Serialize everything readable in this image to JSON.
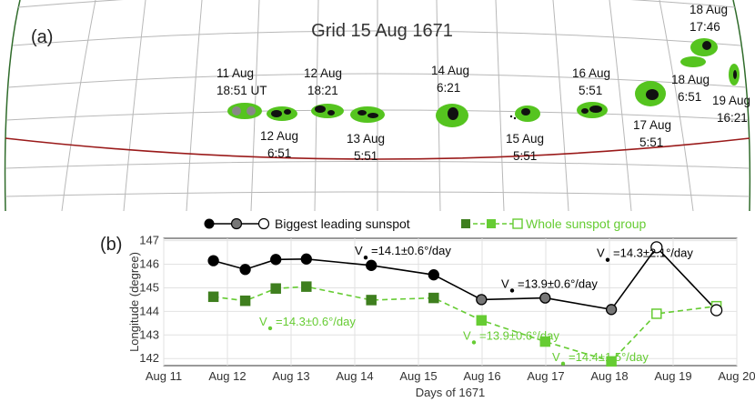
{
  "panel_a": {
    "label": "(a)",
    "title": "Grid 15 Aug 1671",
    "drawings": [
      {
        "date": "11 Aug",
        "time": "18:51 UT",
        "type": "leading"
      },
      {
        "date": "12 Aug",
        "time": "6:51"
      },
      {
        "date": "12 Aug",
        "time": "18:21"
      },
      {
        "date": "13 Aug",
        "time": "5:51"
      },
      {
        "date": "14 Aug",
        "time": "6:21"
      },
      {
        "date": "15 Aug",
        "time": "5:51"
      },
      {
        "date": "16 Aug",
        "time": "5:51"
      },
      {
        "date": "17 Aug",
        "time": "5:51"
      },
      {
        "date": "18 Aug",
        "time": "6:51"
      },
      {
        "date": "18 Aug",
        "time": "17:46"
      },
      {
        "date": "19 Aug",
        "time": "16:21"
      }
    ],
    "colors": {
      "spot_fill": "#55c41f",
      "umbra": "#111111",
      "grid": "#b0b0b0",
      "limb": "#9a1a1a"
    }
  },
  "panel_b": {
    "label": "(b)",
    "legend": {
      "leading": "Biggest leading sunspot",
      "group": "Whole sunspot group"
    }
  },
  "chart_data": {
    "type": "line",
    "xlabel": "Days of 1671",
    "ylabel": "Longitude (degree)",
    "xlim": [
      11,
      20
    ],
    "ylim": [
      141.7,
      147.1
    ],
    "x_ticks": [
      11,
      12,
      13,
      14,
      15,
      16,
      17,
      18,
      19,
      20
    ],
    "x_tick_labels": [
      "Aug 11",
      "Aug 12",
      "Aug 13",
      "Aug 14",
      "Aug 15",
      "Aug 16",
      "Aug 17",
      "Aug 18",
      "Aug 19",
      "Aug 20"
    ],
    "y_ticks": [
      142,
      143,
      144,
      145,
      146,
      147
    ],
    "y_tick_labels": [
      "142",
      "143",
      "144",
      "145",
      "146",
      "147"
    ],
    "grid": true,
    "legend_position": "top",
    "series": [
      {
        "name": "Biggest leading sunspot",
        "color": "#000000",
        "line": "solid",
        "x": [
          11.78,
          12.28,
          12.76,
          13.24,
          14.26,
          15.24,
          15.99,
          16.99,
          18.03,
          18.74,
          19.68
        ],
        "y": [
          146.15,
          145.78,
          146.2,
          146.22,
          145.95,
          145.55,
          144.5,
          144.57,
          144.08,
          146.72,
          144.05
        ],
        "markers": [
          "filled",
          "filled",
          "filled",
          "filled",
          "filled",
          "filled",
          "gray",
          "gray",
          "gray",
          "open",
          "open"
        ]
      },
      {
        "name": "Whole sunspot group",
        "color": "#66cc33",
        "dark_color": "#3f7f1f",
        "line": "dashed",
        "x": [
          11.78,
          12.28,
          12.76,
          13.24,
          14.26,
          15.24,
          15.99,
          16.99,
          18.03,
          18.74,
          19.68
        ],
        "y": [
          144.62,
          144.45,
          144.97,
          145.05,
          144.48,
          144.57,
          143.62,
          142.72,
          141.88,
          143.9,
          144.22
        ],
        "markers": [
          "dark",
          "dark",
          "dark",
          "dark",
          "dark",
          "dark",
          "light",
          "light",
          "light",
          "open",
          "open"
        ]
      }
    ],
    "annotations": [
      {
        "text": "=14.1±0.6°/day",
        "x": 14.0,
        "y": 146.4,
        "color": "#000000"
      },
      {
        "text": "=14.3±2.1°/day",
        "x": 17.8,
        "y": 146.3,
        "color": "#000000"
      },
      {
        "text": "=13.9±0.6°/day",
        "x": 16.3,
        "y": 145.0,
        "color": "#000000"
      },
      {
        "text": "=14.3±0.6°/day",
        "x": 12.5,
        "y": 143.4,
        "color": "#66cc33"
      },
      {
        "text": "=13.9±0.6°/day",
        "x": 15.7,
        "y": 142.8,
        "color": "#66cc33"
      },
      {
        "text": "=14.4±1.5°/day",
        "x": 17.1,
        "y": 141.9,
        "color": "#66cc33"
      }
    ]
  }
}
